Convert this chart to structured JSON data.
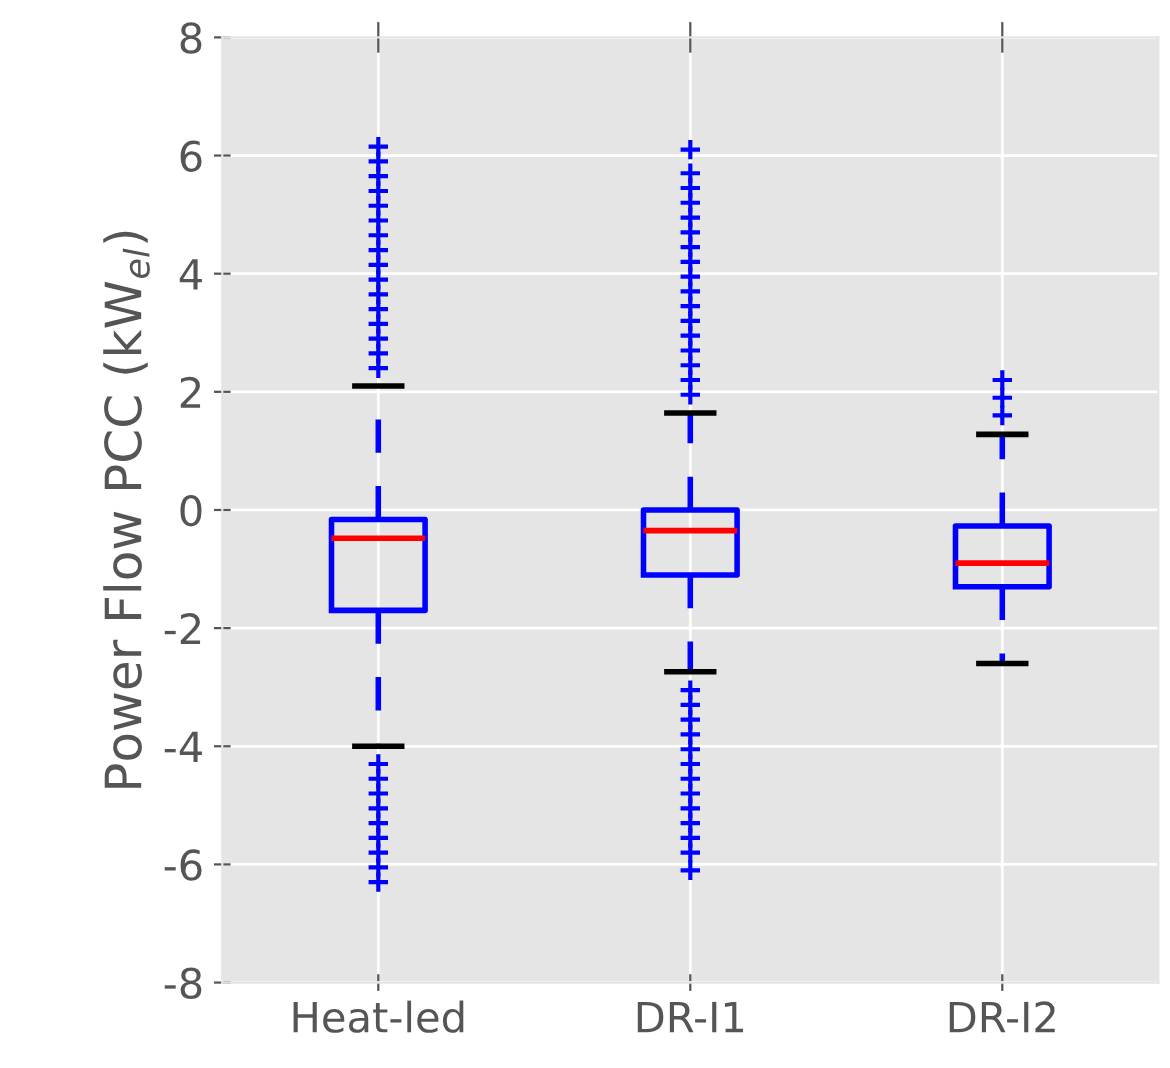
{
  "chart_data": {
    "type": "box",
    "ylabel": "Power Flow PCC (kW$_{el}$)",
    "categories": [
      "Heat-led",
      "DR-I1",
      "DR-I2"
    ],
    "boxes": [
      {
        "low": -4.0,
        "q1": -1.7,
        "median": -0.48,
        "q3": -0.16,
        "high": 2.1,
        "outliers": [
          2.4,
          2.65,
          2.9,
          3.15,
          3.4,
          3.65,
          3.9,
          4.15,
          4.4,
          4.65,
          4.9,
          5.15,
          5.4,
          5.65,
          5.9,
          6.15,
          -4.3,
          -4.55,
          -4.8,
          -5.05,
          -5.3,
          -5.55,
          -5.8,
          -6.05,
          -6.3
        ]
      },
      {
        "low": -2.74,
        "q1": -1.1,
        "median": -0.35,
        "q3": 0.0,
        "high": 1.64,
        "outliers": [
          1.95,
          2.2,
          2.45,
          2.7,
          2.95,
          3.2,
          3.45,
          3.7,
          3.95,
          4.2,
          4.45,
          4.7,
          4.95,
          5.2,
          5.45,
          5.7,
          6.1,
          -3.05,
          -3.3,
          -3.55,
          -3.8,
          -4.05,
          -4.3,
          -4.55,
          -4.8,
          -5.05,
          -5.3,
          -5.55,
          -5.8,
          -6.1
        ]
      },
      {
        "low": -2.6,
        "q1": -1.3,
        "median": -0.9,
        "q3": -0.27,
        "high": 1.28,
        "outliers": [
          1.6,
          1.9,
          2.2
        ]
      }
    ],
    "color": "#0000ff",
    "marker": "cross",
    "line_style": "dashed",
    "ylim": [
      -8,
      8
    ],
    "yticks": [
      -8,
      -6,
      -4,
      -2,
      0,
      2,
      4,
      6,
      8
    ],
    "grid": true
  }
}
